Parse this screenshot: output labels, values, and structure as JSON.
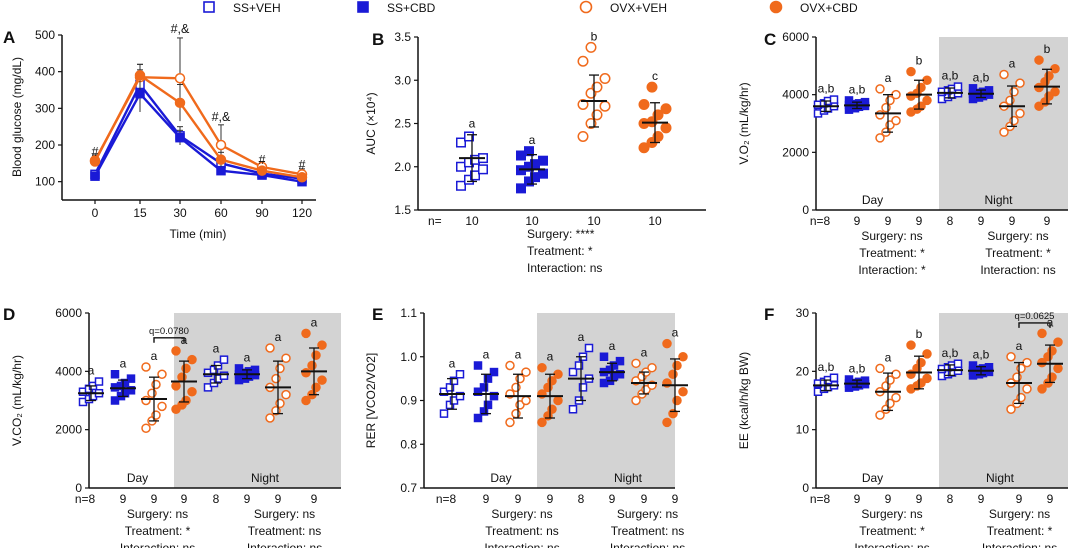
{
  "colors": {
    "ss": "#1a1ad6",
    "ovx": "#f06a1c",
    "night_bg": "#d3d3d3",
    "axis": "#111111"
  },
  "legend": [
    {
      "label": "SS+VEH",
      "group": "ss",
      "filled": false
    },
    {
      "label": "SS+CBD",
      "group": "ss",
      "filled": true
    },
    {
      "label": "OVX+VEH",
      "group": "ovx",
      "filled": false
    },
    {
      "label": "OVX+CBD",
      "group": "ovx",
      "filled": true
    }
  ],
  "chart_data": [
    {
      "panel": "A",
      "type": "line",
      "ylabel": "Blood glucose (mg/dL)",
      "xlabel": "Time (min)",
      "ylim": [
        50,
        500
      ],
      "yticks": [
        100,
        200,
        300,
        400,
        500
      ],
      "x": [
        0,
        15,
        30,
        60,
        90,
        120
      ],
      "series": [
        {
          "name": "SS+VEH",
          "values": [
            120,
            365,
            225,
            150,
            122,
            108
          ],
          "err": [
            10,
            40,
            25,
            15,
            10,
            10
          ]
        },
        {
          "name": "SS+CBD",
          "values": [
            115,
            340,
            220,
            130,
            118,
            100
          ],
          "err": [
            8,
            50,
            20,
            10,
            8,
            8
          ]
        },
        {
          "name": "OVX+VEH",
          "values": [
            158,
            385,
            382,
            200,
            140,
            120
          ],
          "err": [
            15,
            35,
            110,
            55,
            15,
            15
          ]
        },
        {
          "name": "OVX+CBD",
          "values": [
            155,
            390,
            315,
            160,
            130,
            112
          ],
          "err": [
            10,
            30,
            50,
            20,
            10,
            10
          ]
        }
      ],
      "annotations": [
        {
          "x": 0,
          "y": 170,
          "text": "#"
        },
        {
          "x": 30,
          "y": 505,
          "text": "#,&"
        },
        {
          "x": 60,
          "y": 265,
          "text": "#,&"
        },
        {
          "x": 90,
          "y": 148,
          "text": "#"
        },
        {
          "x": 120,
          "y": 135,
          "text": "#"
        }
      ]
    },
    {
      "panel": "B",
      "type": "scatter",
      "ylabel": "AUC (×10⁴)",
      "ylim": [
        1.5,
        3.5
      ],
      "yticks": [
        1.5,
        2.0,
        2.5,
        3.0,
        3.5
      ],
      "groups": [
        {
          "name": "SS+VEH",
          "mean": 2.1,
          "sd": 0.27,
          "letter": "a",
          "n": "10",
          "points": [
            1.78,
            1.85,
            1.9,
            1.97,
            2.0,
            2.05,
            2.08,
            2.1,
            2.28,
            2.35
          ]
        },
        {
          "name": "SS+CBD",
          "mean": 1.97,
          "sd": 0.17,
          "letter": "a",
          "n": "10",
          "points": [
            1.75,
            1.83,
            1.88,
            1.92,
            1.96,
            2.0,
            2.03,
            2.07,
            2.13,
            2.18
          ]
        },
        {
          "name": "OVX+VEH",
          "mean": 2.76,
          "sd": 0.3,
          "letter": "b",
          "n": "10",
          "points": [
            2.35,
            2.5,
            2.6,
            2.7,
            2.72,
            2.85,
            2.92,
            3.02,
            3.22,
            3.38
          ]
        },
        {
          "name": "OVX+CBD",
          "mean": 2.51,
          "sd": 0.23,
          "letter": "c",
          "n": "10",
          "points": [
            2.22,
            2.28,
            2.35,
            2.45,
            2.5,
            2.52,
            2.6,
            2.67,
            2.72,
            2.92
          ]
        }
      ],
      "n_prefix": "n=",
      "stats": [
        "Surgery: ****",
        "Treatment: *",
        "Interaction: ns"
      ]
    },
    {
      "panel": "C",
      "type": "scatter",
      "ylabel": "V.O₂ (mL/kg/hr)",
      "ylim": [
        0,
        6000
      ],
      "yticks": [
        0,
        2000,
        4000,
        6000
      ],
      "day_label": "Day",
      "night_label": "Night",
      "groups": [
        {
          "name": "SS+VEH",
          "period": "Day",
          "mean": 3600,
          "sd": 180,
          "letter": "a,b",
          "n": "n=8",
          "points": [
            3350,
            3450,
            3520,
            3600,
            3650,
            3700,
            3780,
            3830
          ]
        },
        {
          "name": "SS+CBD",
          "period": "Day",
          "mean": 3630,
          "sd": 110,
          "letter": "a,b",
          "n": "9",
          "points": [
            3480,
            3530,
            3580,
            3610,
            3640,
            3670,
            3700,
            3740,
            3800
          ]
        },
        {
          "name": "OVX+VEH",
          "period": "Day",
          "mean": 3350,
          "sd": 650,
          "letter": "a",
          "n": "9",
          "points": [
            2500,
            2700,
            2950,
            3100,
            3300,
            3550,
            3800,
            4000,
            4200
          ]
        },
        {
          "name": "OVX+CBD",
          "period": "Day",
          "mean": 4000,
          "sd": 500,
          "letter": "b",
          "n": "9",
          "points": [
            3400,
            3500,
            3600,
            3800,
            3950,
            4050,
            4250,
            4500,
            4800
          ]
        },
        {
          "name": "SS+VEH",
          "period": "Night",
          "mean": 4060,
          "sd": 170,
          "letter": "a,b",
          "n": "8",
          "points": [
            3850,
            3920,
            4000,
            4050,
            4100,
            4150,
            4200,
            4280
          ]
        },
        {
          "name": "SS+CBD",
          "period": "Night",
          "mean": 4030,
          "sd": 130,
          "letter": "a,b",
          "n": "9",
          "points": [
            3850,
            3900,
            3950,
            4000,
            4030,
            4060,
            4100,
            4150,
            4220
          ]
        },
        {
          "name": "OVX+VEH",
          "period": "Night",
          "mean": 3600,
          "sd": 700,
          "letter": "a",
          "n": "9",
          "points": [
            2700,
            2900,
            3100,
            3350,
            3600,
            3800,
            4100,
            4400,
            4700
          ]
        },
        {
          "name": "OVX+CBD",
          "period": "Night",
          "mean": 4280,
          "sd": 600,
          "letter": "b",
          "n": "9",
          "points": [
            3600,
            3750,
            3950,
            4100,
            4250,
            4450,
            4650,
            4900,
            5200
          ]
        }
      ],
      "stats_day": [
        "Surgery: ns",
        "Treatment: *",
        "Interaction: *"
      ],
      "stats_night": [
        "Surgery: ns",
        "Treatment: *",
        "Interaction: ns"
      ]
    },
    {
      "panel": "D",
      "type": "scatter",
      "ylabel": "V.CO₂ (mL/kg/hr)",
      "ylim": [
        0,
        6000
      ],
      "yticks": [
        0,
        2000,
        4000,
        6000
      ],
      "day_label": "Day",
      "night_label": "Night",
      "bracket": {
        "between": [
          2,
          3
        ],
        "text": "q=0.0780",
        "y": 5150
      },
      "groups": [
        {
          "name": "SS+VEH",
          "period": "Day",
          "mean": 3250,
          "sd": 250,
          "letter": "a",
          "n": "n=8",
          "points": [
            2950,
            3050,
            3150,
            3250,
            3300,
            3400,
            3500,
            3650
          ]
        },
        {
          "name": "SS+CBD",
          "period": "Day",
          "mean": 3420,
          "sd": 280,
          "letter": "a",
          "n": "9",
          "points": [
            3000,
            3150,
            3250,
            3350,
            3450,
            3500,
            3600,
            3750,
            3900
          ]
        },
        {
          "name": "OVX+VEH",
          "period": "Day",
          "mean": 3050,
          "sd": 750,
          "letter": "a",
          "n": "9",
          "points": [
            2050,
            2300,
            2500,
            2800,
            3000,
            3250,
            3550,
            3900,
            4150
          ]
        },
        {
          "name": "OVX+CBD",
          "period": "Day",
          "mean": 3650,
          "sd": 700,
          "letter": "a",
          "n": "9",
          "points": [
            2700,
            2850,
            3000,
            3300,
            3500,
            3800,
            4100,
            4400,
            4700
          ]
        },
        {
          "name": "SS+VEH",
          "period": "Night",
          "mean": 3900,
          "sd": 300,
          "letter": "a",
          "n": "8",
          "points": [
            3450,
            3600,
            3750,
            3850,
            3950,
            4050,
            4200,
            4400
          ]
        },
        {
          "name": "SS+CBD",
          "period": "Night",
          "mean": 3900,
          "sd": 150,
          "letter": "a",
          "n": "9",
          "points": [
            3700,
            3750,
            3820,
            3870,
            3900,
            3950,
            4000,
            4050,
            4100
          ]
        },
        {
          "name": "OVX+VEH",
          "period": "Night",
          "mean": 3450,
          "sd": 900,
          "letter": "a",
          "n": "9",
          "points": [
            2400,
            2650,
            2900,
            3200,
            3450,
            3750,
            4100,
            4450,
            4800
          ]
        },
        {
          "name": "OVX+CBD",
          "period": "Night",
          "mean": 4000,
          "sd": 800,
          "letter": "a",
          "n": "9",
          "points": [
            3000,
            3200,
            3450,
            3700,
            3950,
            4200,
            4550,
            4900,
            5300
          ]
        }
      ],
      "stats_day": [
        "Surgery: ns",
        "Treatment: *",
        "Interaction: ns"
      ],
      "stats_night": [
        "Surgery: ns",
        "Treatment: ns",
        "Interaction: ns"
      ]
    },
    {
      "panel": "E",
      "type": "scatter",
      "ylabel": "RER [VCO2/VO2]",
      "ylim": [
        0.7,
        1.1
      ],
      "yticks": [
        0.7,
        0.8,
        0.9,
        1.0,
        1.1
      ],
      "day_label": "Day",
      "night_label": "Night",
      "groups": [
        {
          "name": "SS+VEH",
          "period": "Day",
          "mean": 0.915,
          "sd": 0.035,
          "letter": "a",
          "n": "n=8",
          "points": [
            0.87,
            0.89,
            0.9,
            0.91,
            0.92,
            0.93,
            0.945,
            0.96
          ]
        },
        {
          "name": "SS+CBD",
          "period": "Day",
          "mean": 0.915,
          "sd": 0.045,
          "letter": "a",
          "n": "9",
          "points": [
            0.86,
            0.875,
            0.89,
            0.91,
            0.92,
            0.93,
            0.95,
            0.965,
            0.98
          ]
        },
        {
          "name": "OVX+VEH",
          "period": "Day",
          "mean": 0.91,
          "sd": 0.05,
          "letter": "a",
          "n": "9",
          "points": [
            0.85,
            0.87,
            0.89,
            0.9,
            0.915,
            0.93,
            0.95,
            0.965,
            0.98
          ]
        },
        {
          "name": "OVX+CBD",
          "period": "Day",
          "mean": 0.91,
          "sd": 0.05,
          "letter": "a",
          "n": "9",
          "points": [
            0.85,
            0.865,
            0.88,
            0.9,
            0.915,
            0.93,
            0.945,
            0.96,
            0.975
          ]
        },
        {
          "name": "SS+VEH",
          "period": "Night",
          "mean": 0.95,
          "sd": 0.05,
          "letter": "a",
          "n": "8",
          "points": [
            0.88,
            0.9,
            0.93,
            0.95,
            0.965,
            0.98,
            1.0,
            1.02
          ]
        },
        {
          "name": "SS+CBD",
          "period": "Night",
          "mean": 0.965,
          "sd": 0.02,
          "letter": "a",
          "n": "9",
          "points": [
            0.94,
            0.945,
            0.955,
            0.96,
            0.965,
            0.97,
            0.98,
            0.99,
            1.0
          ]
        },
        {
          "name": "OVX+VEH",
          "period": "Night",
          "mean": 0.94,
          "sd": 0.025,
          "letter": "a",
          "n": "9",
          "points": [
            0.9,
            0.915,
            0.925,
            0.935,
            0.945,
            0.955,
            0.965,
            0.975,
            0.985
          ]
        },
        {
          "name": "OVX+CBD",
          "period": "Night",
          "mean": 0.935,
          "sd": 0.06,
          "letter": "a",
          "n": "9",
          "points": [
            0.85,
            0.87,
            0.9,
            0.92,
            0.94,
            0.96,
            0.98,
            1.0,
            1.03
          ]
        }
      ],
      "stats_day": [
        "Surgery: ns",
        "Treatment: ns",
        "Interaction: ns"
      ],
      "stats_night": [
        "Surgery: ns",
        "Treatment: ns",
        "Interaction: ns"
      ]
    },
    {
      "panel": "F",
      "type": "scatter",
      "ylabel": "EE (kcal/h/kg BW)",
      "ylim": [
        0,
        30
      ],
      "yticks": [
        0,
        10,
        20,
        30
      ],
      "day_label": "Day",
      "night_label": "Night",
      "bracket": {
        "between": [
          6,
          7
        ],
        "text": "q=0.0625",
        "y": 28.3
      },
      "groups": [
        {
          "name": "SS+VEH",
          "period": "Day",
          "mean": 17.6,
          "sd": 0.9,
          "letter": "a,b",
          "n": "n=8",
          "points": [
            16.5,
            17.0,
            17.3,
            17.6,
            17.9,
            18.2,
            18.5,
            18.9
          ]
        },
        {
          "name": "SS+CBD",
          "period": "Day",
          "mean": 17.9,
          "sd": 0.6,
          "letter": "a,b",
          "n": "9",
          "points": [
            17.2,
            17.4,
            17.6,
            17.8,
            17.9,
            18.0,
            18.2,
            18.4,
            18.6
          ]
        },
        {
          "name": "OVX+VEH",
          "period": "Day",
          "mean": 16.5,
          "sd": 3.2,
          "letter": "a",
          "n": "9",
          "points": [
            12.5,
            13.5,
            14.5,
            15.5,
            16.5,
            17.5,
            18.5,
            19.5,
            20.5
          ]
        },
        {
          "name": "OVX+CBD",
          "period": "Day",
          "mean": 19.8,
          "sd": 2.8,
          "letter": "b",
          "n": "9",
          "points": [
            17.0,
            17.5,
            18.0,
            18.8,
            19.5,
            20.5,
            21.5,
            23.0,
            24.5
          ]
        },
        {
          "name": "SS+VEH",
          "period": "Night",
          "mean": 20.2,
          "sd": 0.9,
          "letter": "a,b",
          "n": "8",
          "points": [
            19.2,
            19.5,
            19.8,
            20.1,
            20.4,
            20.7,
            21.0,
            21.3
          ]
        },
        {
          "name": "SS+CBD",
          "period": "Night",
          "mean": 20.1,
          "sd": 0.7,
          "letter": "a,b",
          "n": "9",
          "points": [
            19.3,
            19.5,
            19.7,
            19.9,
            20.1,
            20.3,
            20.5,
            20.7,
            21.0
          ]
        },
        {
          "name": "OVX+VEH",
          "period": "Night",
          "mean": 18.0,
          "sd": 3.5,
          "letter": "a",
          "n": "9",
          "points": [
            13.5,
            14.5,
            15.5,
            17.0,
            18.0,
            19.0,
            20.5,
            21.5,
            22.5
          ]
        },
        {
          "name": "OVX+CBD",
          "period": "Night",
          "mean": 21.3,
          "sd": 3.2,
          "letter": "a",
          "n": "9",
          "points": [
            17.0,
            18.0,
            19.0,
            20.5,
            21.5,
            22.5,
            23.5,
            25.0,
            26.5
          ]
        }
      ],
      "stats_day": [
        "Surgery: ns",
        "Treatment: *",
        "Interaction: ns"
      ],
      "stats_night": [
        "Surgery: ns",
        "Treatment: *",
        "Interaction: ns"
      ]
    }
  ]
}
